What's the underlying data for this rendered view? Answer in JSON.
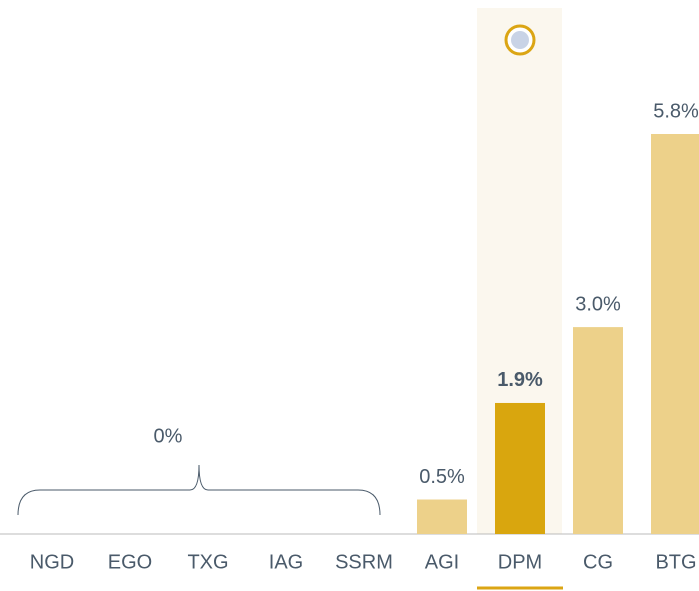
{
  "chart_data": {
    "type": "bar",
    "categories": [
      "NGD",
      "EGO",
      "TXG",
      "IAG",
      "SSRM",
      "AGI",
      "DPM",
      "CG",
      "BTG"
    ],
    "values": [
      0,
      0,
      0,
      0,
      0,
      0.5,
      1.9,
      3.0,
      5.8
    ],
    "value_labels": [
      null,
      null,
      null,
      null,
      null,
      "0.5%",
      "1.9%",
      "3.0%",
      "5.8%"
    ],
    "group_label": "0%",
    "color": "#edd18a",
    "highlight_color": "#d9a60e",
    "highlight_index": 6,
    "ylim": [
      0,
      5.8
    ]
  }
}
